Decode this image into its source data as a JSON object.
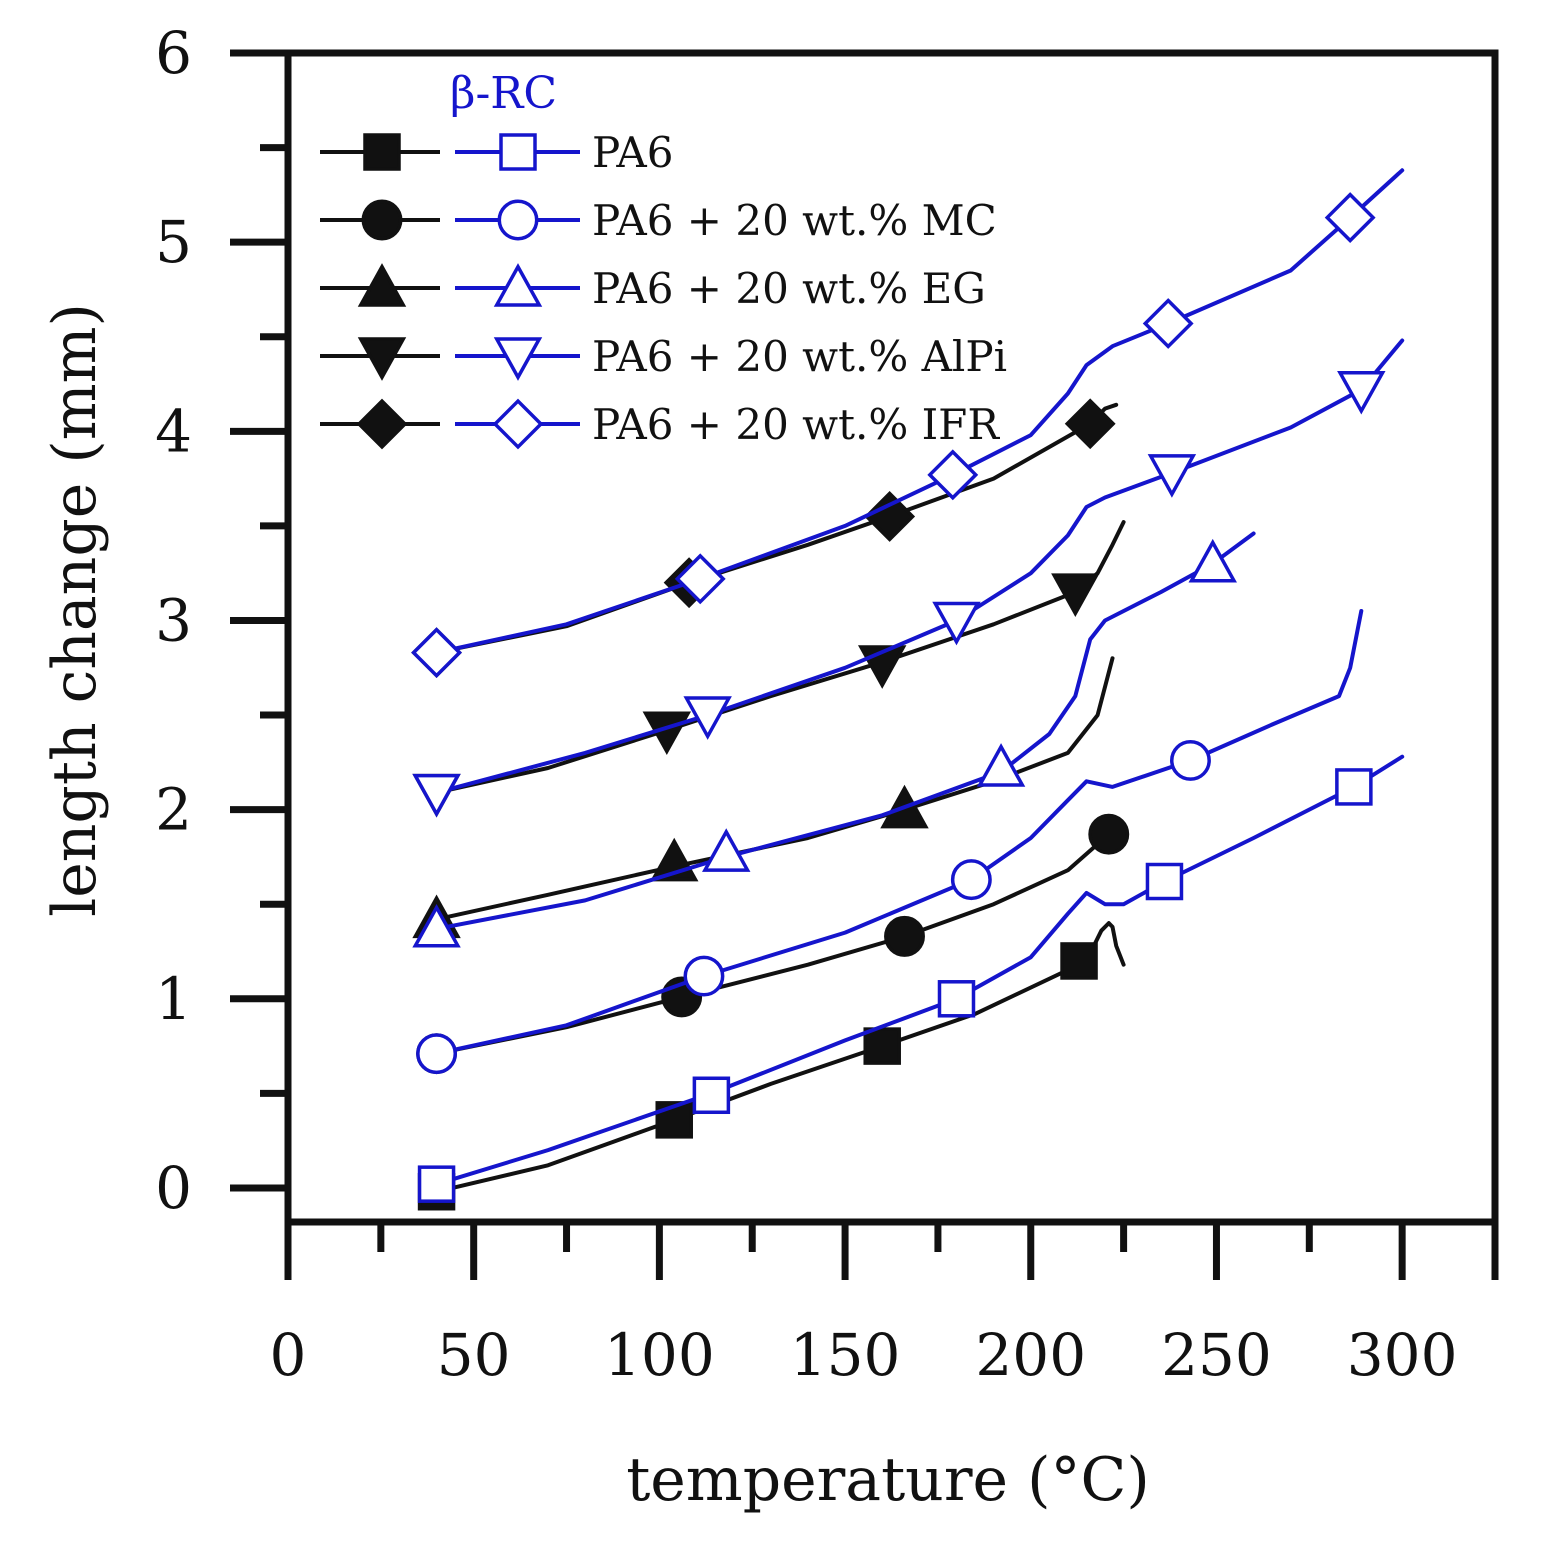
{
  "chart_data": {
    "type": "line",
    "title": "",
    "xlabel": "temperature (°C)",
    "ylabel": "length change (mm)",
    "xlim": [
      0,
      325
    ],
    "ylim": [
      -0.18,
      6
    ],
    "xticks": [
      0,
      50,
      100,
      150,
      200,
      250,
      300
    ],
    "yticks": [
      0,
      1,
      2,
      3,
      4,
      5,
      6
    ],
    "grid": false,
    "legend": {
      "position": "top-left",
      "heading": "β-RC",
      "entries": [
        {
          "label": "PA6",
          "marker": "square"
        },
        {
          "label": "PA6 + 20 wt.% MC",
          "marker": "circle"
        },
        {
          "label": "PA6 + 20 wt.% EG",
          "marker": "triangle-up"
        },
        {
          "label": "PA6 + 20 wt.% AlPi",
          "marker": "triangle-down"
        },
        {
          "label": "PA6 + 20 wt.% IFR",
          "marker": "diamond"
        }
      ]
    },
    "colors": {
      "base": "#111111",
      "rc": "#1515cc"
    },
    "series": [
      {
        "name": "PA6",
        "group": "base",
        "marker": "square",
        "filled": true,
        "x": [
          40,
          70,
          104,
          130,
          160,
          185,
          213,
          217,
          219,
          221,
          222,
          223,
          225
        ],
        "y": [
          -0.02,
          0.12,
          0.36,
          0.55,
          0.75,
          0.92,
          1.18,
          1.28,
          1.36,
          1.4,
          1.38,
          1.28,
          1.18
        ],
        "markers": [
          [
            40,
            -0.02
          ],
          [
            104,
            0.36
          ],
          [
            160,
            0.75
          ],
          [
            213,
            1.2
          ]
        ]
      },
      {
        "name": "PA6",
        "group": "rc",
        "marker": "square",
        "filled": false,
        "x": [
          40,
          70,
          114,
          150,
          180,
          200,
          210,
          215,
          220,
          225,
          236,
          260,
          287,
          300
        ],
        "y": [
          0.02,
          0.2,
          0.5,
          0.78,
          1.0,
          1.22,
          1.45,
          1.56,
          1.5,
          1.5,
          1.62,
          1.85,
          2.12,
          2.28
        ],
        "markers": [
          [
            40,
            0.02
          ],
          [
            114,
            0.49
          ],
          [
            180,
            1.0
          ],
          [
            236,
            1.62
          ],
          [
            287,
            2.12
          ]
        ]
      },
      {
        "name": "PA6 + 20 wt.% MC",
        "group": "base",
        "marker": "circle",
        "filled": true,
        "x": [
          40,
          75,
          106,
          140,
          166,
          190,
          210,
          221
        ],
        "y": [
          0.71,
          0.85,
          1.01,
          1.18,
          1.33,
          1.5,
          1.68,
          1.87
        ],
        "markers": [
          [
            40,
            0.71
          ],
          [
            106,
            1.01
          ],
          [
            166,
            1.33
          ],
          [
            221,
            1.87
          ]
        ]
      },
      {
        "name": "PA6 + 20 wt.% MC",
        "group": "rc",
        "marker": "circle",
        "filled": false,
        "x": [
          40,
          75,
          112,
          150,
          184,
          200,
          210,
          215,
          222,
          243,
          265,
          283,
          286,
          288,
          289
        ],
        "y": [
          0.71,
          0.86,
          1.12,
          1.35,
          1.63,
          1.85,
          2.05,
          2.15,
          2.12,
          2.26,
          2.45,
          2.6,
          2.75,
          2.95,
          3.05
        ],
        "markers": [
          [
            40,
            0.71
          ],
          [
            112,
            1.12
          ],
          [
            184,
            1.63
          ],
          [
            243,
            2.26
          ]
        ]
      },
      {
        "name": "PA6 + 20 wt.% EG",
        "group": "base",
        "marker": "triangle-up",
        "filled": true,
        "x": [
          40,
          70,
          104,
          140,
          166,
          190,
          210,
          218,
          222
        ],
        "y": [
          1.42,
          1.55,
          1.7,
          1.85,
          2.0,
          2.15,
          2.3,
          2.5,
          2.8
        ],
        "markers": [
          [
            40,
            1.42
          ],
          [
            104,
            1.72
          ],
          [
            166,
            2.0
          ]
        ]
      },
      {
        "name": "PA6 + 20 wt.% EG",
        "group": "rc",
        "marker": "triangle-up",
        "filled": false,
        "x": [
          40,
          80,
          118,
          160,
          192,
          205,
          212,
          216,
          220,
          235,
          249,
          260
        ],
        "y": [
          1.37,
          1.52,
          1.75,
          1.97,
          2.2,
          2.4,
          2.6,
          2.9,
          3.0,
          3.15,
          3.3,
          3.46
        ],
        "markers": [
          [
            40,
            1.37
          ],
          [
            118,
            1.77
          ],
          [
            192,
            2.22
          ],
          [
            249,
            3.3
          ]
        ]
      },
      {
        "name": "PA6 + 20 wt.% AlPi",
        "group": "base",
        "marker": "triangle-down",
        "filled": true,
        "x": [
          40,
          70,
          102,
          130,
          160,
          190,
          212,
          218,
          222,
          225
        ],
        "y": [
          2.09,
          2.22,
          2.42,
          2.6,
          2.78,
          2.98,
          3.15,
          3.25,
          3.4,
          3.52
        ],
        "markers": [
          [
            40,
            2.09
          ],
          [
            102,
            2.42
          ],
          [
            160,
            2.77
          ],
          [
            212,
            3.15
          ]
        ]
      },
      {
        "name": "PA6 + 20 wt.% AlPi",
        "group": "rc",
        "marker": "triangle-down",
        "filled": false,
        "x": [
          40,
          80,
          113,
          150,
          180,
          200,
          210,
          215,
          220,
          238,
          270,
          289,
          300
        ],
        "y": [
          2.09,
          2.3,
          2.5,
          2.75,
          3.0,
          3.25,
          3.45,
          3.6,
          3.65,
          3.78,
          4.02,
          4.22,
          4.48
        ],
        "markers": [
          [
            40,
            2.09
          ],
          [
            113,
            2.5
          ],
          [
            180,
            3.0
          ],
          [
            238,
            3.78
          ],
          [
            289,
            4.22
          ]
        ]
      },
      {
        "name": "PA6 + 20 wt.% IFR",
        "group": "base",
        "marker": "diamond",
        "filled": true,
        "x": [
          40,
          75,
          108,
          140,
          162,
          190,
          216,
          220,
          223
        ],
        "y": [
          2.83,
          2.97,
          3.2,
          3.4,
          3.55,
          3.75,
          4.04,
          4.12,
          4.14
        ],
        "markers": [
          [
            40,
            2.83
          ],
          [
            108,
            3.2
          ],
          [
            162,
            3.55
          ],
          [
            216,
            4.04
          ]
        ]
      },
      {
        "name": "PA6 + 20 wt.% IFR",
        "group": "rc",
        "marker": "diamond",
        "filled": false,
        "x": [
          40,
          75,
          111,
          150,
          179,
          200,
          210,
          215,
          222,
          237,
          270,
          286,
          300
        ],
        "y": [
          2.83,
          2.98,
          3.22,
          3.5,
          3.77,
          3.98,
          4.2,
          4.35,
          4.45,
          4.57,
          4.85,
          5.13,
          5.38
        ],
        "markers": [
          [
            40,
            2.83
          ],
          [
            111,
            3.22
          ],
          [
            179,
            3.77
          ],
          [
            237,
            4.57
          ],
          [
            286,
            5.13
          ]
        ]
      }
    ]
  }
}
